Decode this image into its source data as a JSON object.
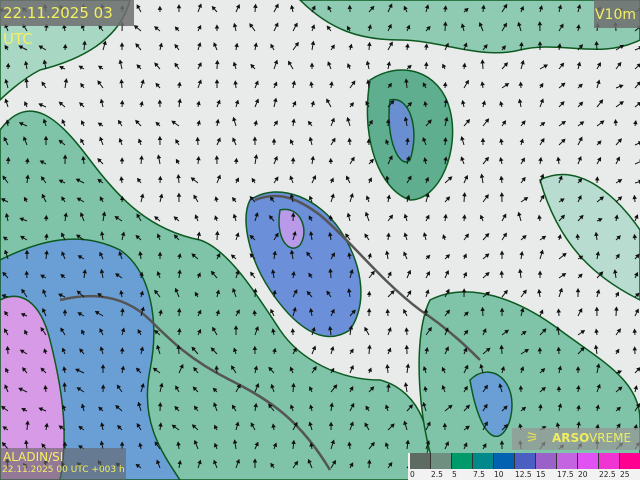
{
  "header": {
    "valid_time": "22.11.2025 03 UTC",
    "parameter": "V10m"
  },
  "model": {
    "name": "ALADIN/SI",
    "run": "22.11.2025 00 UTC +003 h"
  },
  "brand": {
    "icon": "wind-sock-icon",
    "name_bold": "ARSO",
    "name_light": "VREME"
  },
  "legend": {
    "ticks": [
      "0",
      "2.5",
      "5",
      "7.5",
      "10",
      "12.5",
      "15",
      "17.5",
      "20",
      "22.5",
      "25"
    ],
    "colors": [
      "#5d6b63",
      "#6f8f80",
      "#00996a",
      "#00888a",
      "#0062b0",
      "#4b5ec2",
      "#9a62c8",
      "#c464e0",
      "#e252f2",
      "#f034d2",
      "#ff0090"
    ]
  }
}
